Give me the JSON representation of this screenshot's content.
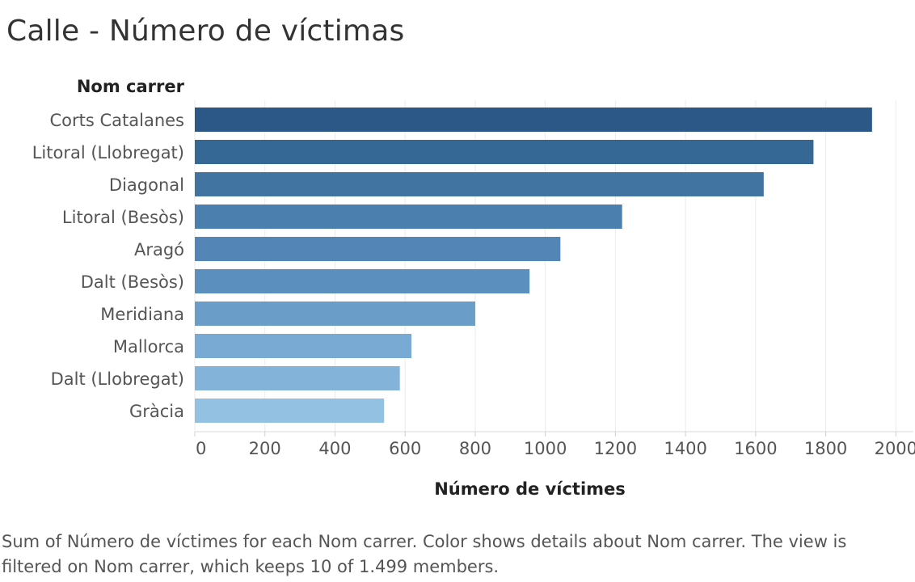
{
  "title": "Calle - Número de víctimas",
  "caption": "Sum of Número de víctimes for each Nom carrer.  Color shows details about Nom carrer. The view is filtered on Nom carrer, which keeps 10 of 1.499 members.",
  "chart_data": {
    "type": "bar",
    "orientation": "horizontal",
    "row_header": "Nom carrer",
    "xlabel": "Número de víctimes",
    "xlim": [
      0,
      2050
    ],
    "xticks": [
      0,
      200,
      400,
      600,
      800,
      1000,
      1200,
      1400,
      1600,
      1800,
      2000
    ],
    "grid": true,
    "categories": [
      "Corts Catalanes",
      "Litoral (Llobregat)",
      "Diagonal",
      "Litoral (Besòs)",
      "Aragó",
      "Dalt (Besòs)",
      "Meridiana",
      "Mallorca",
      "Dalt (Llobregat)",
      "Gràcia"
    ],
    "values": [
      1932,
      1765,
      1623,
      1219,
      1043,
      955,
      800,
      618,
      585,
      540
    ],
    "colors": [
      "#2b5886",
      "#366896",
      "#4274a2",
      "#4b7fae",
      "#5386b6",
      "#5b8fbe",
      "#6a9dc8",
      "#78aad3",
      "#84b3da",
      "#93c1e1"
    ]
  }
}
